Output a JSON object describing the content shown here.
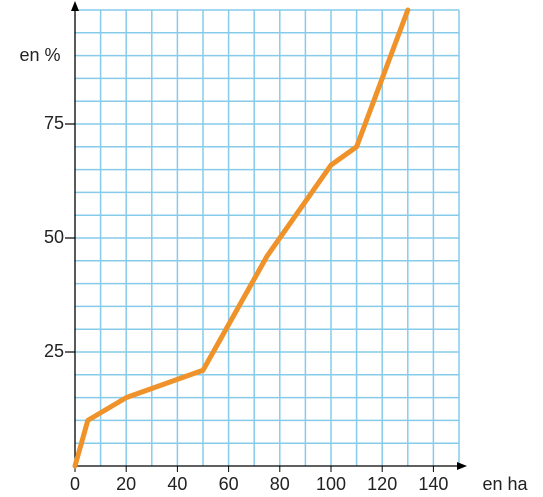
{
  "chart_data": {
    "type": "line",
    "x_label": "en ha",
    "y_label": "en %",
    "x": [
      0,
      5,
      20,
      50,
      75,
      100,
      110,
      130
    ],
    "series": [
      {
        "color": "#f0922a",
        "values": [
          0,
          10,
          15,
          21,
          46,
          66,
          70,
          100
        ]
      }
    ],
    "xlim": [
      0,
      150
    ],
    "ylim": [
      0,
      100
    ],
    "xticks": [
      0,
      20,
      40,
      60,
      80,
      100,
      120,
      140
    ],
    "yticks": [
      25,
      50,
      75
    ],
    "grid": true,
    "grid_color": "#86cbea"
  }
}
